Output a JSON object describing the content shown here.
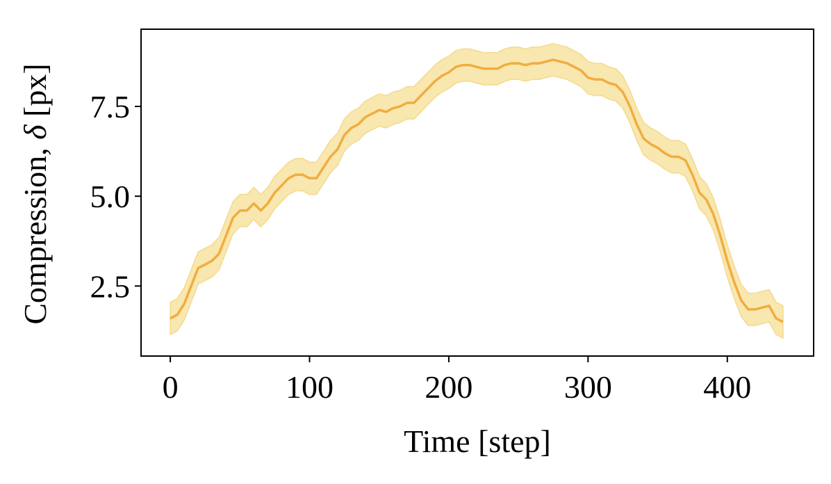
{
  "chart_data": {
    "type": "line",
    "title": "",
    "xlabel": "Time [step]",
    "ylabel_text": "Compression, ",
    "ylabel_symbol": "δ",
    "ylabel_unit": " [px]",
    "xlim": [
      -21,
      462
    ],
    "ylim": [
      0.55,
      9.65
    ],
    "xticks": [
      0,
      100,
      200,
      300,
      400
    ],
    "xtick_labels": [
      "0",
      "100",
      "200",
      "300",
      "400"
    ],
    "yticks": [
      2.5,
      5.0,
      7.5
    ],
    "ytick_labels": [
      "2.5",
      "5.0",
      "7.5"
    ],
    "grid": false,
    "legend": "none",
    "colors": {
      "line": "#f0ad40",
      "band": "#f9e7b0",
      "band_edge": "#f5d98c"
    },
    "series": [
      {
        "x": [
          0,
          5,
          10,
          15,
          20,
          25,
          30,
          35,
          40,
          45,
          50,
          55,
          60,
          65,
          70,
          75,
          80,
          85,
          90,
          95,
          100,
          105,
          110,
          115,
          120,
          125,
          130,
          135,
          140,
          145,
          150,
          155,
          160,
          165,
          170,
          175,
          180,
          185,
          190,
          195,
          200,
          205,
          210,
          215,
          220,
          225,
          230,
          235,
          240,
          245,
          250,
          255,
          260,
          265,
          270,
          275,
          280,
          285,
          290,
          295,
          300,
          305,
          310,
          315,
          320,
          325,
          330,
          335,
          340,
          345,
          350,
          355,
          360,
          365,
          370,
          375,
          380,
          385,
          390,
          395,
          400,
          405,
          410,
          415,
          420,
          425,
          430,
          435,
          440
        ],
        "y": [
          1.6,
          1.7,
          2.0,
          2.5,
          3.0,
          3.1,
          3.2,
          3.4,
          3.9,
          4.4,
          4.6,
          4.6,
          4.8,
          4.6,
          4.8,
          5.1,
          5.3,
          5.5,
          5.6,
          5.6,
          5.5,
          5.5,
          5.8,
          6.1,
          6.3,
          6.7,
          6.9,
          7.0,
          7.2,
          7.3,
          7.4,
          7.35,
          7.45,
          7.5,
          7.6,
          7.6,
          7.8,
          8.0,
          8.2,
          8.35,
          8.45,
          8.6,
          8.65,
          8.65,
          8.6,
          8.55,
          8.55,
          8.55,
          8.65,
          8.7,
          8.7,
          8.65,
          8.7,
          8.7,
          8.75,
          8.8,
          8.75,
          8.7,
          8.6,
          8.5,
          8.3,
          8.25,
          8.25,
          8.15,
          8.1,
          7.9,
          7.5,
          7.0,
          6.6,
          6.45,
          6.35,
          6.2,
          6.1,
          6.1,
          6.0,
          5.6,
          5.1,
          4.9,
          4.5,
          3.9,
          3.2,
          2.6,
          2.1,
          1.85,
          1.85,
          1.9,
          1.95,
          1.6,
          1.5
        ],
        "band_halfwidth": 0.45
      }
    ]
  }
}
